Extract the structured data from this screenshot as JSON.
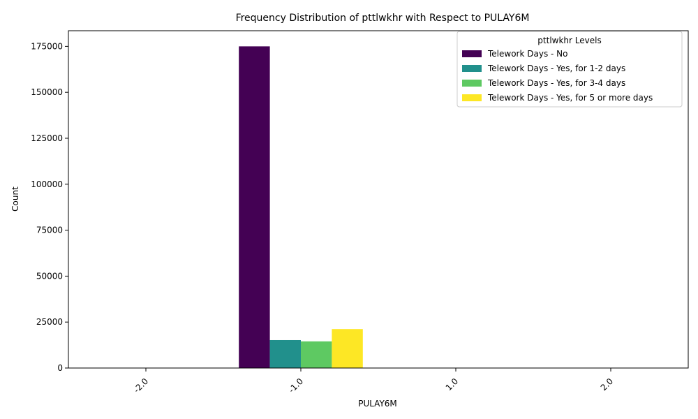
{
  "chart_data": {
    "type": "bar",
    "title": "Frequency Distribution of pttlwkhr with Respect to PULAY6M",
    "xlabel": "PULAY6M",
    "ylabel": "Count",
    "categories": [
      "-2.0",
      "-1.0",
      "1.0",
      "2.0"
    ],
    "ylim": [
      0,
      183500
    ],
    "yticks": [
      0,
      25000,
      50000,
      75000,
      100000,
      125000,
      150000,
      175000
    ],
    "legend_title": "pttlwkhr Levels",
    "legend_position": "top-right",
    "grid": false,
    "series": [
      {
        "name": "Telework Days - No",
        "color": "#440154",
        "values": [
          0,
          175000,
          0,
          0
        ]
      },
      {
        "name": "Telework Days - Yes, for 1-2 days",
        "color": "#21908c",
        "values": [
          0,
          15200,
          0,
          0
        ]
      },
      {
        "name": "Telework Days - Yes, for 3-4 days",
        "color": "#5ec962",
        "values": [
          0,
          14500,
          0,
          0
        ]
      },
      {
        "name": "Telework Days - Yes, for 5 or more days",
        "color": "#fde725",
        "values": [
          0,
          21200,
          0,
          0
        ]
      }
    ]
  }
}
